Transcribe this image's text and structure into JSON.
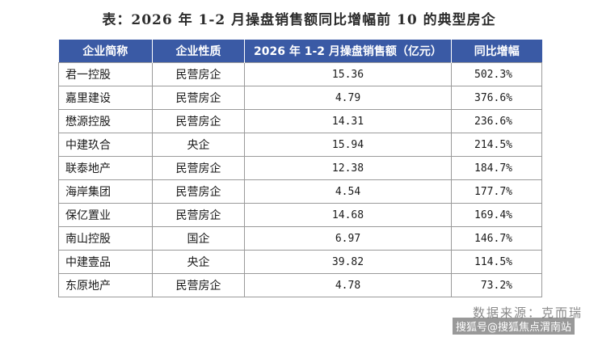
{
  "title": "表：2026 年 1-2 月操盘销售额同比增幅前 10 的典型房企",
  "table": {
    "headers": [
      "企业简称",
      "企业性质",
      "2026 年 1-2 月操盘销售额（亿元）",
      "同比增幅"
    ],
    "rows": [
      {
        "name": "君一控股",
        "type": "民营房企",
        "sales": "15.36",
        "growth": "502.3%"
      },
      {
        "name": "嘉里建设",
        "type": "民营房企",
        "sales": "4.79",
        "growth": "376.6%"
      },
      {
        "name": "懋源控股",
        "type": "民营房企",
        "sales": "14.31",
        "growth": "236.6%"
      },
      {
        "name": "中建玖合",
        "type": "央企",
        "sales": "15.94",
        "growth": "214.5%"
      },
      {
        "name": "联泰地产",
        "type": "民营房企",
        "sales": "12.38",
        "growth": "184.7%"
      },
      {
        "name": "海岸集团",
        "type": "民营房企",
        "sales": "4.54",
        "growth": "177.7%"
      },
      {
        "name": "保亿置业",
        "type": "民营房企",
        "sales": "14.68",
        "growth": "169.4%"
      },
      {
        "name": "南山控股",
        "type": "国企",
        "sales": "6.97",
        "growth": "146.7%"
      },
      {
        "name": "中建壹品",
        "type": "央企",
        "sales": "39.82",
        "growth": "114.5%"
      },
      {
        "name": "东原地产",
        "type": "民营房企",
        "sales": "4.78",
        "growth": "73.2%"
      }
    ]
  },
  "source": "数据来源：克而瑞",
  "watermark": "搜狐号@搜狐焦点渭南站"
}
